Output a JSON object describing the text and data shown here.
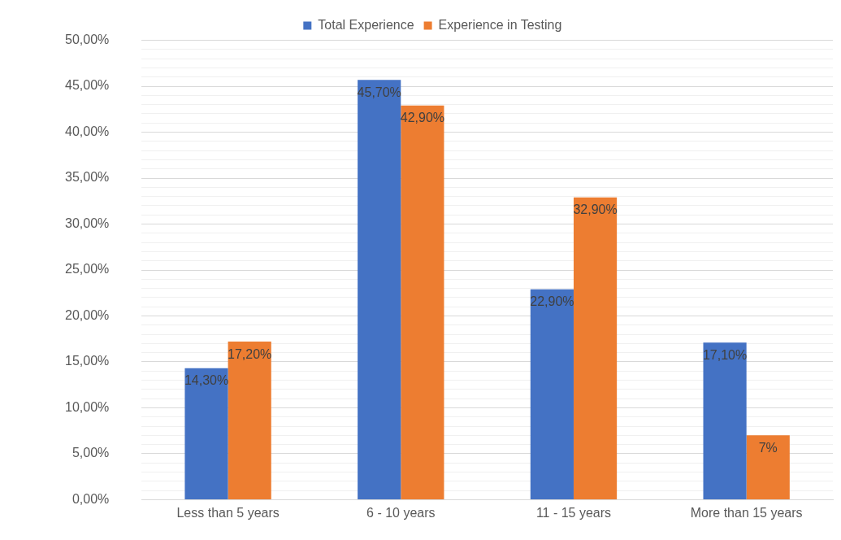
{
  "chart_data": {
    "type": "bar",
    "categories": [
      "Less than 5 years",
      "6 - 10 years",
      "11 - 15 years",
      "More than 15 years"
    ],
    "series": [
      {
        "name": "Total Experience",
        "color": "#4472c4",
        "values": [
          14.3,
          45.7,
          22.9,
          17.1
        ],
        "value_labels": [
          "14,30%",
          "45,70%",
          "22,90%",
          "17,10%"
        ]
      },
      {
        "name": "Experience in Testing",
        "color": "#ed7d31",
        "values": [
          17.2,
          42.9,
          32.9,
          7
        ],
        "value_labels": [
          "17,20%",
          "42,90%",
          "32,90%",
          "7%"
        ]
      }
    ],
    "ylim": [
      0,
      50
    ],
    "yticks": [
      {
        "value": 0,
        "label": "0,00%"
      },
      {
        "value": 1,
        "label": null
      },
      {
        "value": 2,
        "label": null
      },
      {
        "value": 3,
        "label": null
      },
      {
        "value": 4,
        "label": null
      },
      {
        "value": 5,
        "label": "5,00%"
      },
      {
        "value": 6,
        "label": null
      },
      {
        "value": 7,
        "label": null
      },
      {
        "value": 8,
        "label": null
      },
      {
        "value": 9,
        "label": null
      },
      {
        "value": 10,
        "label": "10,00%"
      },
      {
        "value": 11,
        "label": null
      },
      {
        "value": 12,
        "label": null
      },
      {
        "value": 13,
        "label": null
      },
      {
        "value": 14,
        "label": null
      },
      {
        "value": 15,
        "label": "15,00%"
      },
      {
        "value": 16,
        "label": null
      },
      {
        "value": 17,
        "label": null
      },
      {
        "value": 18,
        "label": null
      },
      {
        "value": 19,
        "label": null
      },
      {
        "value": 20,
        "label": "20,00%"
      },
      {
        "value": 21,
        "label": null
      },
      {
        "value": 22,
        "label": null
      },
      {
        "value": 23,
        "label": null
      },
      {
        "value": 24,
        "label": null
      },
      {
        "value": 25,
        "label": "25,00%"
      },
      {
        "value": 26,
        "label": null
      },
      {
        "value": 27,
        "label": null
      },
      {
        "value": 28,
        "label": null
      },
      {
        "value": 29,
        "label": null
      },
      {
        "value": 30,
        "label": "30,00%"
      },
      {
        "value": 31,
        "label": null
      },
      {
        "value": 32,
        "label": null
      },
      {
        "value": 33,
        "label": null
      },
      {
        "value": 34,
        "label": null
      },
      {
        "value": 35,
        "label": "35,00%"
      },
      {
        "value": 36,
        "label": null
      },
      {
        "value": 37,
        "label": null
      },
      {
        "value": 38,
        "label": null
      },
      {
        "value": 39,
        "label": null
      },
      {
        "value": 40,
        "label": "40,00%"
      },
      {
        "value": 41,
        "label": null
      },
      {
        "value": 42,
        "label": null
      },
      {
        "value": 43,
        "label": null
      },
      {
        "value": 44,
        "label": null
      },
      {
        "value": 45,
        "label": "45,00%"
      },
      {
        "value": 46,
        "label": null
      },
      {
        "value": 47,
        "label": null
      },
      {
        "value": 48,
        "label": null
      },
      {
        "value": 49,
        "label": null
      },
      {
        "value": 50,
        "label": "50,00%"
      }
    ],
    "grid": "y",
    "legend": "top"
  }
}
